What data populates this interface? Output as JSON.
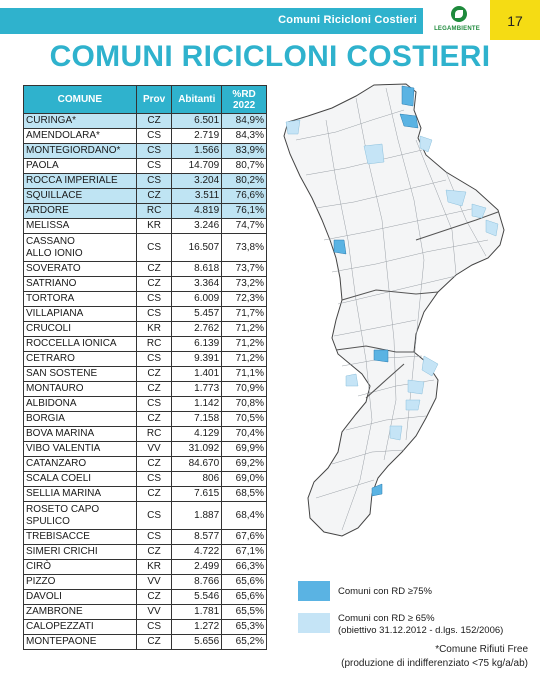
{
  "header": {
    "section_label": "Comuni Ricicloni Costieri",
    "logo_text": "LEGAMBIENTE",
    "page_number": "17"
  },
  "title": "COMUNI RICICLONI COSTIERI",
  "table": {
    "columns": [
      "COMUNE",
      "Prov",
      "Abitanti",
      "%RD 2022"
    ],
    "rows": [
      {
        "comune": "CURINGA*",
        "prov": "CZ",
        "abitanti": "6.501",
        "rd": "84,9%",
        "hl": true
      },
      {
        "comune": "AMENDOLARA*",
        "prov": "CS",
        "abitanti": "2.719",
        "rd": "84,3%",
        "hl": false
      },
      {
        "comune": "MONTEGIORDANO*",
        "prov": "CS",
        "abitanti": "1.566",
        "rd": "83,9%",
        "hl": true
      },
      {
        "comune": "PAOLA",
        "prov": "CS",
        "abitanti": "14.709",
        "rd": "80,7%",
        "hl": false
      },
      {
        "comune": "ROCCA IMPERIALE",
        "prov": "CS",
        "abitanti": "3.204",
        "rd": "80,2%",
        "hl": true
      },
      {
        "comune": "SQUILLACE",
        "prov": "CZ",
        "abitanti": "3.511",
        "rd": "76,6%",
        "hl": true
      },
      {
        "comune": "ARDORE",
        "prov": "RC",
        "abitanti": "4.819",
        "rd": "76,1%",
        "hl": true
      },
      {
        "comune": "MELISSA",
        "prov": "KR",
        "abitanti": "3.246",
        "rd": "74,7%",
        "hl": false
      },
      {
        "comune": "CASSANO\nALLO IONIO",
        "prov": "CS",
        "abitanti": "16.507",
        "rd": "73,8%",
        "hl": false,
        "tall": true
      },
      {
        "comune": "SOVERATO",
        "prov": "CZ",
        "abitanti": "8.618",
        "rd": "73,7%",
        "hl": false
      },
      {
        "comune": "SATRIANO",
        "prov": "CZ",
        "abitanti": "3.364",
        "rd": "73,2%",
        "hl": false
      },
      {
        "comune": "TORTORA",
        "prov": "CS",
        "abitanti": "6.009",
        "rd": "72,3%",
        "hl": false
      },
      {
        "comune": "VILLAPIANA",
        "prov": "CS",
        "abitanti": "5.457",
        "rd": "71,7%",
        "hl": false
      },
      {
        "comune": "CRUCOLI",
        "prov": "KR",
        "abitanti": "2.762",
        "rd": "71,2%",
        "hl": false
      },
      {
        "comune": "ROCCELLA IONICA",
        "prov": "RC",
        "abitanti": "6.139",
        "rd": "71,2%",
        "hl": false
      },
      {
        "comune": "CETRARO",
        "prov": "CS",
        "abitanti": "9.391",
        "rd": "71,2%",
        "hl": false
      },
      {
        "comune": "SAN SOSTENE",
        "prov": "CZ",
        "abitanti": "1.401",
        "rd": "71,1%",
        "hl": false
      },
      {
        "comune": "MONTAURO",
        "prov": "CZ",
        "abitanti": "1.773",
        "rd": "70,9%",
        "hl": false
      },
      {
        "comune": "ALBIDONA",
        "prov": "CS",
        "abitanti": "1.142",
        "rd": "70,8%",
        "hl": false
      },
      {
        "comune": "BORGIA",
        "prov": "CZ",
        "abitanti": "7.158",
        "rd": "70,5%",
        "hl": false
      },
      {
        "comune": "BOVA MARINA",
        "prov": "RC",
        "abitanti": "4.129",
        "rd": "70,4%",
        "hl": false
      },
      {
        "comune": "VIBO VALENTIA",
        "prov": "VV",
        "abitanti": "31.092",
        "rd": "69,9%",
        "hl": false
      },
      {
        "comune": "CATANZARO",
        "prov": "CZ",
        "abitanti": "84.670",
        "rd": "69,2%",
        "hl": false
      },
      {
        "comune": "SCALA COELI",
        "prov": "CS",
        "abitanti": "806",
        "rd": "69,0%",
        "hl": false
      },
      {
        "comune": "SELLIA MARINA",
        "prov": "CZ",
        "abitanti": "7.615",
        "rd": "68,5%",
        "hl": false
      },
      {
        "comune": "ROSETO CAPO\nSPULICO",
        "prov": "CS",
        "abitanti": "1.887",
        "rd": "68,4%",
        "hl": false,
        "tall": true
      },
      {
        "comune": "TREBISACCE",
        "prov": "CS",
        "abitanti": "8.577",
        "rd": "67,6%",
        "hl": false
      },
      {
        "comune": "SIMERI CRICHI",
        "prov": "CZ",
        "abitanti": "4.722",
        "rd": "67,1%",
        "hl": false
      },
      {
        "comune": "CIRÒ",
        "prov": "KR",
        "abitanti": "2.499",
        "rd": "66,3%",
        "hl": false
      },
      {
        "comune": "PIZZO",
        "prov": "VV",
        "abitanti": "8.766",
        "rd": "65,6%",
        "hl": false
      },
      {
        "comune": "DAVOLI",
        "prov": "CZ",
        "abitanti": "5.546",
        "rd": "65,6%",
        "hl": false
      },
      {
        "comune": "ZAMBRONE",
        "prov": "VV",
        "abitanti": "1.781",
        "rd": "65,5%",
        "hl": false
      },
      {
        "comune": "CALOPEZZATI",
        "prov": "CS",
        "abitanti": "1.272",
        "rd": "65,3%",
        "hl": false
      },
      {
        "comune": "MONTEPAONE",
        "prov": "CZ",
        "abitanti": "5.656",
        "rd": "65,2%",
        "hl": false
      }
    ]
  },
  "legend": {
    "item1": "Comuni con RD  ≥75%",
    "item2_line1": "Comuni con RD  ≥ 65%",
    "item2_line2": "(obiettivo 31.12.2012 - d.lgs. 152/2006)",
    "dark_color": "#5ab3e3",
    "light_color": "#c5e4f6"
  },
  "footnote": {
    "line1": "*Comune Rifiuti Free",
    "line2": "(produzione di indifferenziato <75 kg/a/ab)"
  },
  "colors": {
    "accent": "#2fb2cd",
    "page_box": "#f5dc14",
    "row_highlight": "#bfe4f3"
  }
}
